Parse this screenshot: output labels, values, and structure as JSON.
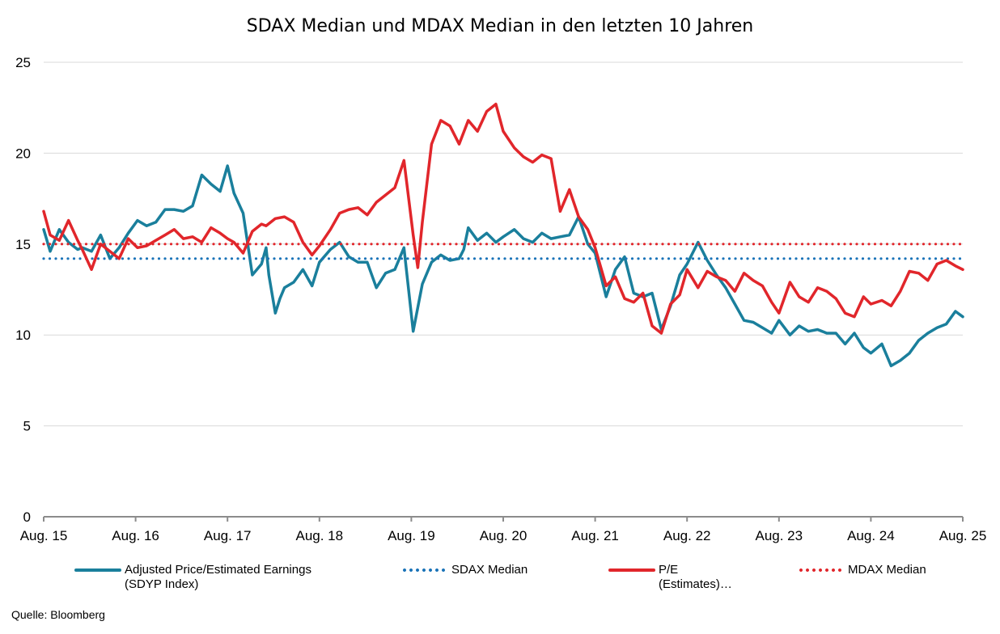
{
  "chart_data": {
    "type": "line",
    "title": "SDAX Median und MDAX Median in den letzten 10 Jahren",
    "xlabel": "",
    "ylabel": "",
    "ylim": [
      0,
      25
    ],
    "yticks": [
      "0",
      "5",
      "10",
      "15",
      "20",
      "25"
    ],
    "yticks_values": [
      0,
      5,
      10,
      15,
      20,
      25
    ],
    "xlim": [
      2015.58,
      2025.58
    ],
    "xticks": [
      "Aug. 15",
      "Aug. 16",
      "Aug. 17",
      "Aug. 18",
      "Aug. 19",
      "Aug. 20",
      "Aug. 21",
      "Aug. 22",
      "Aug. 23",
      "Aug. 24",
      "Aug. 25"
    ],
    "xticks_values": [
      2015.58,
      2016.58,
      2017.58,
      2018.58,
      2019.58,
      2020.58,
      2021.58,
      2022.58,
      2023.58,
      2024.58,
      2025.58
    ],
    "grid": true,
    "legend_position": "bottom",
    "series": [
      {
        "name": "Adjusted Price/Estimated Earnings (SDYP Index)",
        "style": "solid",
        "color": "#1a7f9c",
        "x": [
          2015.58,
          2015.65,
          2015.75,
          2015.85,
          2015.95,
          2016.0,
          2016.1,
          2016.2,
          2016.3,
          2016.4,
          2016.5,
          2016.6,
          2016.7,
          2016.8,
          2016.9,
          2017.0,
          2017.1,
          2017.2,
          2017.3,
          2017.4,
          2017.5,
          2017.58,
          2017.65,
          2017.75,
          2017.85,
          2017.95,
          2018.0,
          2018.03,
          2018.1,
          2018.15,
          2018.2,
          2018.3,
          2018.4,
          2018.5,
          2018.58,
          2018.7,
          2018.8,
          2018.9,
          2019.0,
          2019.1,
          2019.2,
          2019.3,
          2019.4,
          2019.5,
          2019.6,
          2019.7,
          2019.8,
          2019.9,
          2020.0,
          2020.1,
          2020.15,
          2020.2,
          2020.3,
          2020.4,
          2020.5,
          2020.58,
          2020.7,
          2020.8,
          2020.9,
          2021.0,
          2021.1,
          2021.2,
          2021.3,
          2021.4,
          2021.5,
          2021.58,
          2021.7,
          2021.8,
          2021.9,
          2022.0,
          2022.1,
          2022.2,
          2022.3,
          2022.4,
          2022.5,
          2022.58,
          2022.7,
          2022.8,
          2022.9,
          2023.0,
          2023.1,
          2023.2,
          2023.3,
          2023.4,
          2023.5,
          2023.58,
          2023.7,
          2023.8,
          2023.9,
          2024.0,
          2024.1,
          2024.2,
          2024.3,
          2024.4,
          2024.5,
          2024.58,
          2024.7,
          2024.8,
          2024.9,
          2025.0,
          2025.1,
          2025.2,
          2025.3,
          2025.4,
          2025.5,
          2025.58
        ],
        "values": [
          15.8,
          14.6,
          15.8,
          15.1,
          14.7,
          14.8,
          14.6,
          15.5,
          14.2,
          14.8,
          15.6,
          16.3,
          16.0,
          16.2,
          16.9,
          16.9,
          16.8,
          17.1,
          18.8,
          18.3,
          17.9,
          19.3,
          17.8,
          16.7,
          13.3,
          13.9,
          14.8,
          13.3,
          11.2,
          12.0,
          12.6,
          12.9,
          13.6,
          12.7,
          14.0,
          14.7,
          15.1,
          14.3,
          14.0,
          14.0,
          12.6,
          13.4,
          13.6,
          14.8,
          10.2,
          12.8,
          14.0,
          14.4,
          14.1,
          14.2,
          14.7,
          15.9,
          15.2,
          15.6,
          15.1,
          15.4,
          15.8,
          15.3,
          15.1,
          15.6,
          15.3,
          15.4,
          15.5,
          16.5,
          15.0,
          14.5,
          12.1,
          13.6,
          14.3,
          12.3,
          12.1,
          12.3,
          10.3,
          11.6,
          13.3,
          13.9,
          15.1,
          14.1,
          13.3,
          12.6,
          11.7,
          10.8,
          10.7,
          10.4,
          10.1,
          10.8,
          10.0,
          10.5,
          10.2,
          10.3,
          10.1,
          10.1,
          9.5,
          10.1,
          9.3,
          9.0,
          9.5,
          8.3,
          8.6,
          9.0,
          9.7,
          10.1,
          10.4,
          10.6,
          11.3,
          11.0
        ]
      },
      {
        "name": "SDAX Median",
        "style": "dotted",
        "color": "#1a73b8",
        "x": [
          2015.58,
          2025.58
        ],
        "values": [
          14.2,
          14.2
        ]
      },
      {
        "name": "P/E (Estimates)…",
        "style": "solid",
        "color": "#e1262b",
        "x": [
          2015.58,
          2015.65,
          2015.75,
          2015.85,
          2015.95,
          2016.0,
          2016.1,
          2016.2,
          2016.3,
          2016.4,
          2016.5,
          2016.6,
          2016.7,
          2016.8,
          2016.9,
          2017.0,
          2017.1,
          2017.2,
          2017.3,
          2017.4,
          2017.5,
          2017.58,
          2017.65,
          2017.75,
          2017.85,
          2017.95,
          2018.0,
          2018.1,
          2018.2,
          2018.3,
          2018.4,
          2018.5,
          2018.58,
          2018.7,
          2018.8,
          2018.9,
          2019.0,
          2019.1,
          2019.2,
          2019.3,
          2019.4,
          2019.5,
          2019.6,
          2019.65,
          2019.7,
          2019.8,
          2019.9,
          2020.0,
          2020.1,
          2020.2,
          2020.3,
          2020.4,
          2020.5,
          2020.58,
          2020.7,
          2020.8,
          2020.9,
          2021.0,
          2021.1,
          2021.2,
          2021.3,
          2021.4,
          2021.5,
          2021.58,
          2021.7,
          2021.8,
          2021.9,
          2022.0,
          2022.1,
          2022.2,
          2022.3,
          2022.4,
          2022.5,
          2022.58,
          2022.7,
          2022.8,
          2022.9,
          2023.0,
          2023.1,
          2023.2,
          2023.3,
          2023.4,
          2023.5,
          2023.58,
          2023.7,
          2023.8,
          2023.9,
          2024.0,
          2024.1,
          2024.2,
          2024.3,
          2024.4,
          2024.5,
          2024.58,
          2024.7,
          2024.8,
          2024.9,
          2025.0,
          2025.1,
          2025.2,
          2025.3,
          2025.4,
          2025.5,
          2025.58
        ],
        "values": [
          16.8,
          15.5,
          15.2,
          16.3,
          15.2,
          14.7,
          13.6,
          15.0,
          14.6,
          14.2,
          15.3,
          14.8,
          14.9,
          15.2,
          15.5,
          15.8,
          15.3,
          15.4,
          15.1,
          15.9,
          15.6,
          15.3,
          15.1,
          14.5,
          15.7,
          16.1,
          16.0,
          16.4,
          16.5,
          16.2,
          15.1,
          14.4,
          14.9,
          15.8,
          16.7,
          16.9,
          17.0,
          16.6,
          17.3,
          17.7,
          18.1,
          19.6,
          15.5,
          13.7,
          16.2,
          20.5,
          21.8,
          21.5,
          20.5,
          21.8,
          21.2,
          22.3,
          22.7,
          21.2,
          20.3,
          19.8,
          19.5,
          19.9,
          19.7,
          16.8,
          18.0,
          16.5,
          15.8,
          14.8,
          12.7,
          13.2,
          12.0,
          11.8,
          12.3,
          10.5,
          10.1,
          11.7,
          12.2,
          13.6,
          12.6,
          13.5,
          13.2,
          13.0,
          12.4,
          13.4,
          13.0,
          12.7,
          11.8,
          11.2,
          12.9,
          12.1,
          11.8,
          12.6,
          12.4,
          12.0,
          11.2,
          11.0,
          12.1,
          11.7,
          11.9,
          11.6,
          12.4,
          13.5,
          13.4,
          13.0,
          13.9,
          14.1,
          13.8,
          13.6
        ]
      },
      {
        "name": "MDAX Median",
        "style": "dotted",
        "color": "#e1262b",
        "x": [
          2015.58,
          2025.58
        ],
        "values": [
          15.0,
          15.0
        ]
      }
    ],
    "legend": [
      {
        "label": "Adjusted Price/Estimated Earnings\n(SDYP Index)"
      },
      {
        "label": "SDAX Median"
      },
      {
        "label": "P/E\n(Estimates)…"
      },
      {
        "label": "MDAX Median"
      }
    ]
  },
  "source": "Quelle:  Bloomberg",
  "colors": {
    "sdyp": "#1a7f9c",
    "sdax_median": "#1a73b8",
    "pe": "#e1262b",
    "mdax_median": "#e1262b",
    "grid": "#d9d9d9",
    "axis": "#8c8c8c"
  }
}
